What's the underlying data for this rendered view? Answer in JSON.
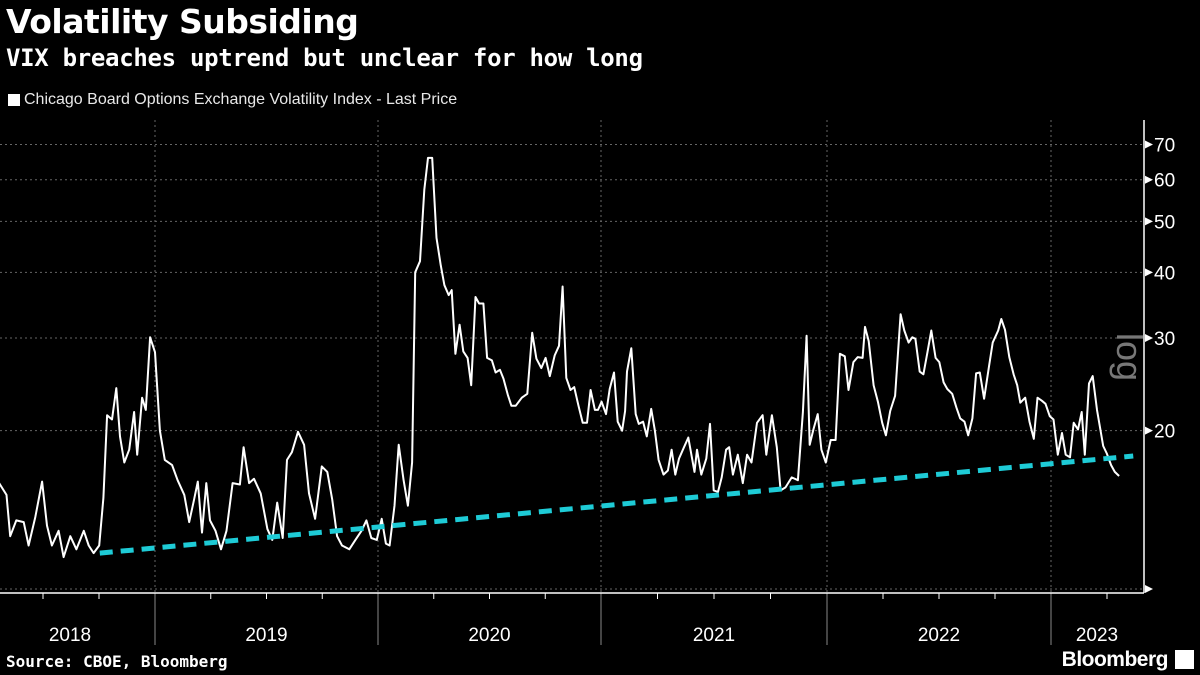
{
  "chart_data": {
    "type": "line",
    "title": "Volatility Subsiding",
    "subtitle": "VIX breaches uptrend but unclear for how long",
    "legend": [
      "Chicago Board Options Exchange Volatility Index - Last Price"
    ],
    "legend_placement": "top-left",
    "source": "Source: CBOE, Bloomberg",
    "logo": "Bloomberg",
    "y_scale": "log",
    "y_scale_label": "log",
    "y_axis_side": "right",
    "ylim": [
      10,
      75
    ],
    "y_ticks": [
      10,
      20,
      30,
      40,
      50,
      60,
      70
    ],
    "y_tick_labels": [
      "",
      "20",
      "30",
      "40",
      "50",
      "60",
      "70"
    ],
    "x_tick_labels": [
      "2018",
      "2019",
      "2020",
      "2021",
      "2022",
      "2023"
    ],
    "grid": true,
    "colors": {
      "series": "#ffffff",
      "trendline": "#1ecbd6",
      "background": "#000000"
    },
    "trendline": {
      "style": "dashed",
      "points": [
        [
          "2018-10-03",
          11.7
        ],
        [
          "2023-05-15",
          17.9
        ]
      ]
    },
    "series": [
      {
        "name": "Chicago Board Options Exchange Volatility Index - Last Price",
        "points": [
          [
            "2018-04-22",
            15.9
          ],
          [
            "2018-05-04",
            15.1
          ],
          [
            "2018-05-10",
            12.6
          ],
          [
            "2018-05-20",
            13.5
          ],
          [
            "2018-06-01",
            13.4
          ],
          [
            "2018-06-09",
            12.1
          ],
          [
            "2018-06-20",
            13.7
          ],
          [
            "2018-07-01",
            16.0
          ],
          [
            "2018-07-09",
            13.2
          ],
          [
            "2018-07-17",
            12.1
          ],
          [
            "2018-07-28",
            12.9
          ],
          [
            "2018-08-05",
            11.5
          ],
          [
            "2018-08-16",
            12.6
          ],
          [
            "2018-08-26",
            11.9
          ],
          [
            "2018-09-07",
            12.9
          ],
          [
            "2018-09-15",
            12.1
          ],
          [
            "2018-09-23",
            11.7
          ],
          [
            "2018-10-02",
            12.1
          ],
          [
            "2018-10-09",
            14.9
          ],
          [
            "2018-10-15",
            21.4
          ],
          [
            "2018-10-23",
            21.0
          ],
          [
            "2018-10-30",
            24.1
          ],
          [
            "2018-11-05",
            19.5
          ],
          [
            "2018-11-12",
            17.4
          ],
          [
            "2018-11-20",
            18.4
          ],
          [
            "2018-11-28",
            21.7
          ],
          [
            "2018-12-03",
            18.0
          ],
          [
            "2018-12-11",
            23.1
          ],
          [
            "2018-12-17",
            21.9
          ],
          [
            "2018-12-24",
            30.1
          ],
          [
            "2019-01-01",
            28.2
          ],
          [
            "2019-01-09",
            20.0
          ],
          [
            "2019-01-17",
            17.6
          ],
          [
            "2019-01-29",
            17.2
          ],
          [
            "2019-02-07",
            16.1
          ],
          [
            "2019-02-18",
            15.1
          ],
          [
            "2019-02-26",
            13.4
          ],
          [
            "2019-03-06",
            14.8
          ],
          [
            "2019-03-12",
            16.0
          ],
          [
            "2019-03-19",
            12.8
          ],
          [
            "2019-03-26",
            15.9
          ],
          [
            "2019-04-01",
            13.5
          ],
          [
            "2019-04-10",
            12.9
          ],
          [
            "2019-04-19",
            11.9
          ],
          [
            "2019-04-28",
            12.9
          ],
          [
            "2019-05-08",
            15.9
          ],
          [
            "2019-05-20",
            15.8
          ],
          [
            "2019-05-26",
            18.6
          ],
          [
            "2019-06-04",
            15.9
          ],
          [
            "2019-06-12",
            16.2
          ],
          [
            "2019-06-23",
            15.2
          ],
          [
            "2019-07-04",
            13.0
          ],
          [
            "2019-07-12",
            12.4
          ],
          [
            "2019-07-20",
            14.6
          ],
          [
            "2019-07-29",
            12.5
          ],
          [
            "2019-08-05",
            17.6
          ],
          [
            "2019-08-13",
            18.2
          ],
          [
            "2019-08-23",
            19.9
          ],
          [
            "2019-09-02",
            18.8
          ],
          [
            "2019-09-10",
            15.2
          ],
          [
            "2019-09-20",
            13.6
          ],
          [
            "2019-10-01",
            17.1
          ],
          [
            "2019-10-10",
            16.7
          ],
          [
            "2019-10-18",
            14.8
          ],
          [
            "2019-10-26",
            12.6
          ],
          [
            "2019-11-03",
            12.1
          ],
          [
            "2019-11-15",
            11.9
          ],
          [
            "2019-11-25",
            12.4
          ],
          [
            "2019-12-05",
            12.9
          ],
          [
            "2019-12-13",
            13.5
          ],
          [
            "2019-12-21",
            12.5
          ],
          [
            "2019-12-30",
            12.4
          ],
          [
            "2020-01-07",
            13.6
          ],
          [
            "2020-01-14",
            12.2
          ],
          [
            "2020-01-20",
            12.1
          ],
          [
            "2020-01-28",
            14.4
          ],
          [
            "2020-02-04",
            18.8
          ],
          [
            "2020-02-12",
            16.1
          ],
          [
            "2020-02-19",
            14.4
          ],
          [
            "2020-02-26",
            17.4
          ],
          [
            "2020-03-02",
            40.0
          ],
          [
            "2020-03-10",
            42.0
          ],
          [
            "2020-03-17",
            57.4
          ],
          [
            "2020-03-23",
            66.0
          ],
          [
            "2020-03-30",
            66.0
          ],
          [
            "2020-04-06",
            46.5
          ],
          [
            "2020-04-13",
            41.2
          ],
          [
            "2020-04-19",
            37.8
          ],
          [
            "2020-04-26",
            36.2
          ],
          [
            "2020-05-01",
            37.0
          ],
          [
            "2020-05-07",
            28.0
          ],
          [
            "2020-05-14",
            31.8
          ],
          [
            "2020-05-20",
            28.3
          ],
          [
            "2020-05-27",
            27.5
          ],
          [
            "2020-06-02",
            24.4
          ],
          [
            "2020-06-09",
            35.9
          ],
          [
            "2020-06-15",
            34.9
          ],
          [
            "2020-06-22",
            34.9
          ],
          [
            "2020-06-28",
            27.5
          ],
          [
            "2020-07-06",
            27.2
          ],
          [
            "2020-07-12",
            25.8
          ],
          [
            "2020-07-19",
            26.1
          ],
          [
            "2020-07-25",
            25.1
          ],
          [
            "2020-08-01",
            23.4
          ],
          [
            "2020-08-07",
            22.3
          ],
          [
            "2020-08-14",
            22.3
          ],
          [
            "2020-08-24",
            23.1
          ],
          [
            "2020-09-02",
            23.5
          ],
          [
            "2020-09-10",
            30.7
          ],
          [
            "2020-09-17",
            27.4
          ],
          [
            "2020-09-25",
            26.3
          ],
          [
            "2020-10-02",
            27.5
          ],
          [
            "2020-10-09",
            25.4
          ],
          [
            "2020-10-17",
            27.8
          ],
          [
            "2020-10-24",
            29.0
          ],
          [
            "2020-10-30",
            37.6
          ],
          [
            "2020-11-05",
            25.2
          ],
          [
            "2020-11-12",
            23.9
          ],
          [
            "2020-11-18",
            24.2
          ],
          [
            "2020-11-25",
            22.3
          ],
          [
            "2020-12-02",
            20.7
          ],
          [
            "2020-12-09",
            20.7
          ],
          [
            "2020-12-15",
            23.9
          ],
          [
            "2020-12-22",
            21.9
          ],
          [
            "2020-12-27",
            21.9
          ],
          [
            "2021-01-02",
            22.7
          ],
          [
            "2021-01-09",
            21.5
          ],
          [
            "2021-01-15",
            24.0
          ],
          [
            "2021-01-22",
            25.8
          ],
          [
            "2021-01-28",
            20.8
          ],
          [
            "2021-02-04",
            20.0
          ],
          [
            "2021-02-09",
            21.8
          ],
          [
            "2021-02-12",
            25.9
          ],
          [
            "2021-02-19",
            28.7
          ],
          [
            "2021-02-26",
            21.5
          ],
          [
            "2021-03-03",
            20.6
          ],
          [
            "2021-03-10",
            20.8
          ],
          [
            "2021-03-16",
            19.5
          ],
          [
            "2021-03-23",
            22.0
          ],
          [
            "2021-03-29",
            20.0
          ],
          [
            "2021-04-04",
            17.6
          ],
          [
            "2021-04-12",
            16.5
          ],
          [
            "2021-04-19",
            16.8
          ],
          [
            "2021-04-25",
            18.4
          ],
          [
            "2021-05-01",
            16.5
          ],
          [
            "2021-05-07",
            17.7
          ],
          [
            "2021-05-15",
            18.6
          ],
          [
            "2021-05-22",
            19.4
          ],
          [
            "2021-06-01",
            16.7
          ],
          [
            "2021-06-05",
            18.4
          ],
          [
            "2021-06-12",
            16.5
          ],
          [
            "2021-06-20",
            17.7
          ],
          [
            "2021-06-26",
            20.6
          ],
          [
            "2021-07-02",
            15.4
          ],
          [
            "2021-07-09",
            15.3
          ],
          [
            "2021-07-15",
            16.3
          ],
          [
            "2021-07-22",
            18.4
          ],
          [
            "2021-07-27",
            18.6
          ],
          [
            "2021-08-02",
            16.5
          ],
          [
            "2021-08-10",
            18.0
          ],
          [
            "2021-08-18",
            15.9
          ],
          [
            "2021-08-25",
            18.0
          ],
          [
            "2021-09-01",
            17.4
          ],
          [
            "2021-09-10",
            20.7
          ],
          [
            "2021-09-19",
            21.4
          ],
          [
            "2021-09-25",
            18.0
          ],
          [
            "2021-10-04",
            21.4
          ],
          [
            "2021-10-12",
            18.6
          ],
          [
            "2021-10-18",
            15.4
          ],
          [
            "2021-10-26",
            15.6
          ],
          [
            "2021-11-05",
            16.3
          ],
          [
            "2021-11-15",
            16.1
          ],
          [
            "2021-11-23",
            21.7
          ],
          [
            "2021-11-29",
            30.3
          ],
          [
            "2021-12-04",
            18.8
          ],
          [
            "2021-12-10",
            20.1
          ],
          [
            "2021-12-17",
            21.5
          ],
          [
            "2021-12-23",
            18.4
          ],
          [
            "2021-12-30",
            17.4
          ],
          [
            "2022-01-07",
            19.2
          ],
          [
            "2022-01-15",
            19.2
          ],
          [
            "2022-01-22",
            28.0
          ],
          [
            "2022-01-30",
            27.7
          ],
          [
            "2022-02-05",
            23.9
          ],
          [
            "2022-02-13",
            27.0
          ],
          [
            "2022-02-20",
            27.6
          ],
          [
            "2022-02-28",
            27.5
          ],
          [
            "2022-03-04",
            31.5
          ],
          [
            "2022-03-10",
            29.6
          ],
          [
            "2022-03-18",
            24.4
          ],
          [
            "2022-03-25",
            22.7
          ],
          [
            "2022-04-01",
            20.7
          ],
          [
            "2022-04-07",
            19.6
          ],
          [
            "2022-04-14",
            21.8
          ],
          [
            "2022-04-22",
            23.3
          ],
          [
            "2022-05-01",
            33.3
          ],
          [
            "2022-05-07",
            31.0
          ],
          [
            "2022-05-14",
            29.4
          ],
          [
            "2022-05-20",
            30.1
          ],
          [
            "2022-05-25",
            29.9
          ],
          [
            "2022-06-01",
            25.9
          ],
          [
            "2022-06-07",
            25.6
          ],
          [
            "2022-06-14",
            28.3
          ],
          [
            "2022-06-20",
            31.0
          ],
          [
            "2022-06-27",
            27.5
          ],
          [
            "2022-07-03",
            27.0
          ],
          [
            "2022-07-10",
            24.7
          ],
          [
            "2022-07-16",
            24.0
          ],
          [
            "2022-07-24",
            23.5
          ],
          [
            "2022-07-31",
            22.1
          ],
          [
            "2022-08-06",
            21.1
          ],
          [
            "2022-08-13",
            20.8
          ],
          [
            "2022-08-19",
            19.6
          ],
          [
            "2022-08-26",
            21.1
          ],
          [
            "2022-09-01",
            25.7
          ],
          [
            "2022-09-07",
            25.8
          ],
          [
            "2022-09-14",
            23.0
          ],
          [
            "2022-09-22",
            26.5
          ],
          [
            "2022-09-28",
            29.4
          ],
          [
            "2022-10-07",
            31.0
          ],
          [
            "2022-10-12",
            32.6
          ],
          [
            "2022-10-18",
            31.1
          ],
          [
            "2022-10-25",
            27.6
          ],
          [
            "2022-11-01",
            25.6
          ],
          [
            "2022-11-07",
            24.4
          ],
          [
            "2022-11-12",
            22.6
          ],
          [
            "2022-11-20",
            23.1
          ],
          [
            "2022-11-27",
            20.8
          ],
          [
            "2022-12-04",
            19.3
          ],
          [
            "2022-12-10",
            23.1
          ],
          [
            "2022-12-17",
            22.8
          ],
          [
            "2022-12-23",
            22.5
          ],
          [
            "2022-12-30",
            21.3
          ],
          [
            "2023-01-05",
            21.0
          ],
          [
            "2023-01-12",
            18.0
          ],
          [
            "2023-01-19",
            19.8
          ],
          [
            "2023-01-25",
            18.0
          ],
          [
            "2023-02-01",
            17.8
          ],
          [
            "2023-02-07",
            20.7
          ],
          [
            "2023-02-14",
            20.1
          ],
          [
            "2023-02-20",
            21.7
          ],
          [
            "2023-02-25",
            18.0
          ],
          [
            "2023-03-04",
            24.6
          ],
          [
            "2023-03-10",
            25.4
          ],
          [
            "2023-03-17",
            21.9
          ],
          [
            "2023-03-27",
            18.7
          ],
          [
            "2023-04-02",
            18.1
          ],
          [
            "2023-04-09",
            17.2
          ],
          [
            "2023-04-15",
            16.7
          ],
          [
            "2023-04-22",
            16.4
          ]
        ]
      }
    ]
  }
}
